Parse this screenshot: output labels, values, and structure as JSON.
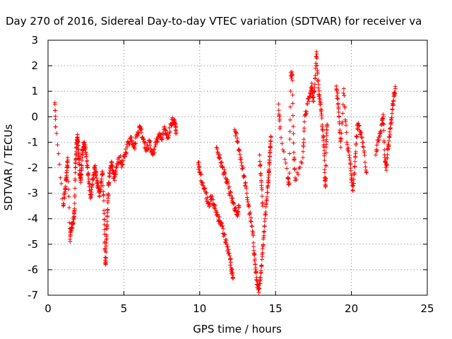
{
  "chart_data": {
    "type": "scatter",
    "title": "Day 270 of 2016, Sidereal Day-to-day VTEC variation (SDTVAR) for receiver va",
    "xlabel": "GPS time / hours",
    "ylabel": "SDTVAR / TECUs",
    "xlim": [
      0,
      25
    ],
    "ylim": [
      -7,
      3
    ],
    "xticks": [
      0,
      5,
      10,
      15,
      20,
      25
    ],
    "yticks": [
      -7,
      -6,
      -5,
      -4,
      -3,
      -2,
      -1,
      0,
      1,
      2,
      3
    ],
    "grid": true,
    "marker": "+",
    "color": "#ff0000",
    "series_segments": [
      [
        0.45,
        0.55
      ],
      [
        0.5,
        -0.4
      ],
      [
        1.0,
        -3.5
      ],
      [
        1.1,
        -3.0
      ],
      [
        1.2,
        -2.5
      ],
      [
        1.25,
        -2.0
      ],
      [
        1.3,
        -1.7
      ],
      [
        1.45,
        -4.8
      ],
      [
        1.5,
        -4.4
      ],
      [
        1.6,
        -4.2
      ],
      [
        1.7,
        -4.0
      ],
      [
        1.75,
        -3.6
      ],
      [
        1.8,
        -2.0
      ],
      [
        1.85,
        -1.5
      ],
      [
        1.9,
        -1.0
      ],
      [
        1.95,
        -0.8
      ],
      [
        2.0,
        -1.3
      ],
      [
        2.05,
        -1.8
      ],
      [
        2.1,
        -2.3
      ],
      [
        2.15,
        -2.5
      ],
      [
        2.2,
        -2.1
      ],
      [
        2.25,
        -1.6
      ],
      [
        2.3,
        -1.2
      ],
      [
        2.4,
        -1.0
      ],
      [
        2.5,
        -1.4
      ],
      [
        2.6,
        -2.0
      ],
      [
        2.7,
        -2.6
      ],
      [
        2.8,
        -3.2
      ],
      [
        2.9,
        -2.7
      ],
      [
        3.0,
        -2.3
      ],
      [
        3.1,
        -2.0
      ],
      [
        3.2,
        -2.4
      ],
      [
        3.3,
        -2.8
      ],
      [
        3.4,
        -3.1
      ],
      [
        3.5,
        -2.6
      ],
      [
        3.6,
        -2.2
      ],
      [
        3.7,
        -3.8
      ],
      [
        3.75,
        -5.2
      ],
      [
        3.8,
        -5.8
      ],
      [
        3.85,
        -4.7
      ],
      [
        3.9,
        -4.1
      ],
      [
        3.95,
        -3.3
      ],
      [
        4.0,
        -2.6
      ],
      [
        4.1,
        -2.1
      ],
      [
        4.2,
        -1.8
      ],
      [
        4.3,
        -2.2
      ],
      [
        4.4,
        -2.5
      ],
      [
        4.5,
        -2.0
      ],
      [
        4.7,
        -1.6
      ],
      [
        4.9,
        -1.9
      ],
      [
        5.1,
        -1.4
      ],
      [
        5.3,
        -1.0
      ],
      [
        5.5,
        -0.8
      ],
      [
        5.7,
        -1.2
      ],
      [
        5.9,
        -0.6
      ],
      [
        6.1,
        -0.4
      ],
      [
        6.3,
        -0.9
      ],
      [
        6.5,
        -1.3
      ],
      [
        6.7,
        -1.0
      ],
      [
        6.9,
        -1.5
      ],
      [
        7.1,
        -1.1
      ],
      [
        7.3,
        -0.7
      ],
      [
        7.5,
        -0.9
      ],
      [
        7.7,
        -0.5
      ],
      [
        7.9,
        -0.8
      ],
      [
        8.1,
        -0.3
      ],
      [
        8.3,
        -0.1
      ],
      [
        8.4,
        -0.4
      ],
      [
        8.45,
        -0.6
      ],
      [
        9.9,
        -1.8
      ],
      [
        10.0,
        -2.2
      ],
      [
        10.2,
        -2.6
      ],
      [
        10.4,
        -3.0
      ],
      [
        10.6,
        -3.4
      ],
      [
        10.8,
        -3.2
      ],
      [
        11.0,
        -3.6
      ],
      [
        11.2,
        -3.9
      ],
      [
        11.4,
        -4.2
      ],
      [
        11.6,
        -4.6
      ],
      [
        11.8,
        -5.1
      ],
      [
        12.0,
        -5.6
      ],
      [
        12.1,
        -6.0
      ],
      [
        12.2,
        -6.3
      ],
      [
        11.1,
        -1.2
      ],
      [
        11.3,
        -1.6
      ],
      [
        11.5,
        -2.0
      ],
      [
        11.7,
        -2.4
      ],
      [
        11.9,
        -2.8
      ],
      [
        12.1,
        -3.2
      ],
      [
        12.3,
        -3.6
      ],
      [
        12.5,
        -3.9
      ],
      [
        12.6,
        -3.5
      ],
      [
        12.3,
        -0.5
      ],
      [
        12.5,
        -1.0
      ],
      [
        12.7,
        -1.6
      ],
      [
        12.9,
        -2.3
      ],
      [
        13.1,
        -3.0
      ],
      [
        13.3,
        -3.8
      ],
      [
        13.5,
        -4.6
      ],
      [
        13.6,
        -5.4
      ],
      [
        13.7,
        -6.1
      ],
      [
        13.8,
        -6.6
      ],
      [
        13.9,
        -6.9
      ],
      [
        14.0,
        -6.3
      ],
      [
        14.1,
        -5.6
      ],
      [
        14.2,
        -4.8
      ],
      [
        14.3,
        -4.0
      ],
      [
        14.4,
        -3.3
      ],
      [
        14.5,
        -2.7
      ],
      [
        14.55,
        -2.2
      ],
      [
        14.6,
        -1.7
      ],
      [
        14.65,
        -1.2
      ],
      [
        14.7,
        -0.8
      ],
      [
        13.95,
        -1.5
      ],
      [
        14.05,
        -2.5
      ],
      [
        14.15,
        -3.5
      ],
      [
        15.2,
        0.5
      ],
      [
        15.3,
        -0.4
      ],
      [
        15.8,
        -2.4
      ],
      [
        15.9,
        -2.6
      ],
      [
        16.0,
        1.6
      ],
      [
        16.1,
        1.65
      ],
      [
        16.2,
        -1.4
      ],
      [
        16.3,
        -2.5
      ],
      [
        16.8,
        -1.6
      ],
      [
        16.9,
        -0.2
      ],
      [
        17.1,
        0.5
      ],
      [
        17.3,
        0.9
      ],
      [
        17.4,
        1.2
      ],
      [
        17.5,
        0.6
      ],
      [
        17.6,
        1.5
      ],
      [
        17.7,
        2.55
      ],
      [
        17.8,
        1.4
      ],
      [
        17.9,
        0.7
      ],
      [
        18.0,
        0.2
      ],
      [
        18.1,
        -0.5
      ],
      [
        18.2,
        -1.2
      ],
      [
        18.25,
        -2.5
      ],
      [
        18.3,
        -2.7
      ],
      [
        18.35,
        -0.9
      ],
      [
        18.4,
        -0.3
      ],
      [
        19.0,
        1.2
      ],
      [
        19.1,
        0.7
      ],
      [
        19.2,
        -0.2
      ],
      [
        19.3,
        -1.2
      ],
      [
        19.5,
        1.1
      ],
      [
        19.7,
        -1.0
      ],
      [
        19.9,
        -1.7
      ],
      [
        20.0,
        -2.4
      ],
      [
        20.1,
        -2.9
      ],
      [
        20.2,
        -2.2
      ],
      [
        20.3,
        -1.1
      ],
      [
        20.4,
        -0.3
      ],
      [
        20.6,
        -0.6
      ],
      [
        20.8,
        -1.2
      ],
      [
        21.0,
        -2.2
      ],
      [
        21.6,
        -1.5
      ],
      [
        21.8,
        -0.8
      ],
      [
        22.0,
        -0.3
      ],
      [
        22.1,
        0.0
      ],
      [
        22.2,
        -1.6
      ],
      [
        22.3,
        -2.1
      ],
      [
        22.4,
        -1.3
      ],
      [
        22.5,
        -0.8
      ],
      [
        22.6,
        -0.3
      ],
      [
        22.7,
        0.3
      ],
      [
        22.8,
        0.8
      ],
      [
        22.9,
        1.1
      ]
    ]
  }
}
